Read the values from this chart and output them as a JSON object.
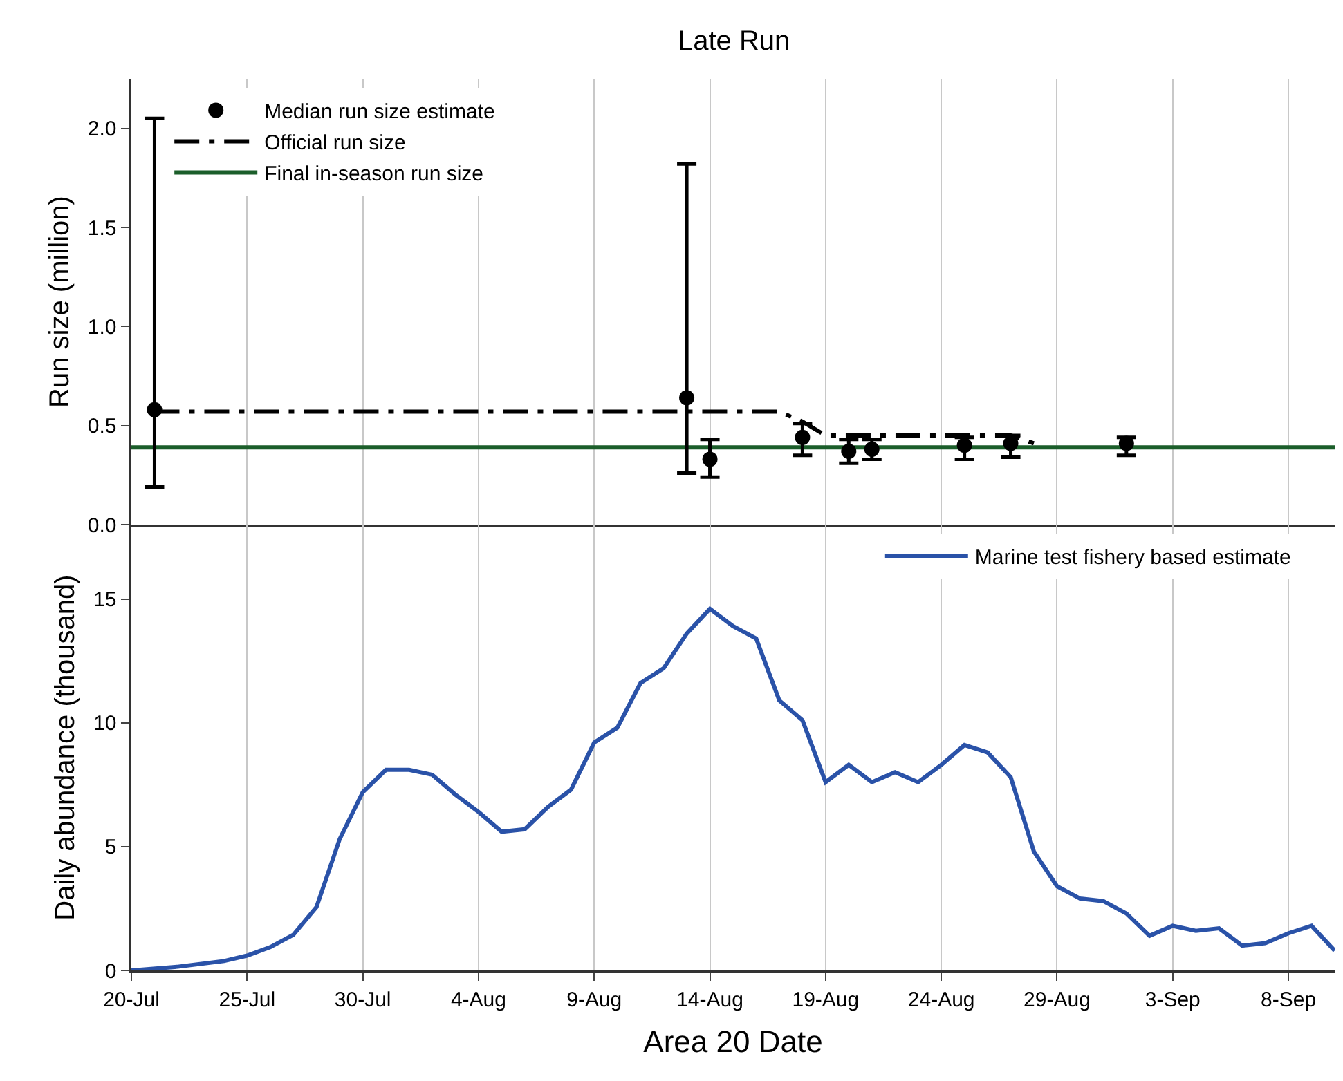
{
  "chart_data": [
    {
      "type": "scatter",
      "title": "Late Run",
      "ylabel": "Run size (million)",
      "xlim": [
        "--07-20",
        "--09-10"
      ],
      "xticks": [
        {
          "value": "--07-20",
          "label": "20-Jul"
        },
        {
          "value": "--07-25",
          "label": "25-Jul"
        },
        {
          "value": "--07-30",
          "label": "30-Jul"
        },
        {
          "value": "--08-04",
          "label": "4-Aug"
        },
        {
          "value": "--08-09",
          "label": "9-Aug"
        },
        {
          "value": "--08-14",
          "label": "14-Aug"
        },
        {
          "value": "--08-19",
          "label": "19-Aug"
        },
        {
          "value": "--08-24",
          "label": "24-Aug"
        },
        {
          "value": "--08-29",
          "label": "29-Aug"
        },
        {
          "value": "--09-03",
          "label": "3-Sep"
        },
        {
          "value": "--09-08",
          "label": "8-Sep"
        }
      ],
      "ylim": [
        0,
        2.25
      ],
      "yticks": [
        {
          "value": 0,
          "label": "0.0"
        },
        {
          "value": 0.5,
          "label": "0.5"
        },
        {
          "value": 1,
          "label": "1.0"
        },
        {
          "value": 1.5,
          "label": "1.5"
        },
        {
          "value": 2,
          "label": "2.0"
        }
      ],
      "tick_labels": "y",
      "grid": "x",
      "legend": "top left",
      "series": [
        {
          "name": "Median run size estimate",
          "type": "scatter",
          "color": "#000000",
          "marker": "circle",
          "x": [
            "--07-21",
            "--08-13",
            "--08-14",
            "--08-18",
            "--08-20",
            "--08-21",
            "--08-25",
            "--08-27",
            "--09-01"
          ],
          "values": [
            0.58,
            0.64,
            0.33,
            0.44,
            0.37,
            0.38,
            0.4,
            0.41,
            0.41
          ],
          "errors": [
            [
              0.19,
              2.05
            ],
            [
              0.26,
              1.82
            ],
            [
              0.24,
              0.43
            ],
            [
              0.35,
              0.51
            ],
            [
              0.31,
              0.43
            ],
            [
              0.33,
              0.43
            ],
            [
              0.33,
              0.44
            ],
            [
              0.34,
              0.45
            ],
            [
              0.35,
              0.44
            ]
          ]
        },
        {
          "name": "Official run size",
          "type": "line",
          "color": "#000000",
          "line_style": "dashdot",
          "x": [
            "--07-21",
            "--08-17",
            "--08-18",
            "--08-19",
            "--08-27",
            "--08-28"
          ],
          "values": [
            0.57,
            0.57,
            0.52,
            0.45,
            0.45,
            0.41
          ]
        }
      ],
      "ref_lines": [
        {
          "axis": "y",
          "value": 0.39,
          "label": "Final in-season run size",
          "color": "#1b5e2a"
        }
      ]
    },
    {
      "type": "line",
      "xlabel": "Area 20 Date",
      "ylabel": "Daily abundance (thousand)",
      "xlim": [
        "--07-20",
        "--09-10"
      ],
      "xticks": [
        {
          "value": "--07-20",
          "label": "20-Jul"
        },
        {
          "value": "--07-25",
          "label": "25-Jul"
        },
        {
          "value": "--07-30",
          "label": "30-Jul"
        },
        {
          "value": "--08-04",
          "label": "4-Aug"
        },
        {
          "value": "--08-09",
          "label": "9-Aug"
        },
        {
          "value": "--08-14",
          "label": "14-Aug"
        },
        {
          "value": "--08-19",
          "label": "19-Aug"
        },
        {
          "value": "--08-24",
          "label": "24-Aug"
        },
        {
          "value": "--08-29",
          "label": "29-Aug"
        },
        {
          "value": "--09-03",
          "label": "3-Sep"
        },
        {
          "value": "--09-08",
          "label": "8-Sep"
        }
      ],
      "ylim": [
        0,
        18
      ],
      "yticks": [
        0,
        5,
        10,
        15
      ],
      "grid": "x",
      "legend": "top right",
      "x": [
        "--07-20",
        "--07-22",
        "--07-24",
        "--07-25",
        "--07-26",
        "--07-27",
        "--07-28",
        "--07-29",
        "--07-30",
        "--07-31",
        "--08-01",
        "--08-02",
        "--08-03",
        "--08-04",
        "--08-05",
        "--08-06",
        "--08-07",
        "--08-08",
        "--08-09",
        "--08-10",
        "--08-11",
        "--08-12",
        "--08-13",
        "--08-14",
        "--08-15",
        "--08-16",
        "--08-17",
        "--08-18",
        "--08-19",
        "--08-20",
        "--08-21",
        "--08-22",
        "--08-23",
        "--08-24",
        "--08-25",
        "--08-26",
        "--08-27",
        "--08-28",
        "--08-29",
        "--08-30",
        "--08-31",
        "--09-01",
        "--09-02",
        "--09-03",
        "--09-04",
        "--09-05",
        "--09-06",
        "--09-07",
        "--09-08",
        "--09-09",
        "--09-10"
      ],
      "series": [
        {
          "name": "Marine test fishery based estimate",
          "color": "#2a52a8",
          "values": [
            0.0,
            0.15,
            0.38,
            0.6,
            0.94,
            1.44,
            2.56,
            5.3,
            7.2,
            8.1,
            8.1,
            7.9,
            7.1,
            6.4,
            5.6,
            5.7,
            6.6,
            7.3,
            9.2,
            9.8,
            11.6,
            12.2,
            13.6,
            14.6,
            13.9,
            13.4,
            10.9,
            10.1,
            7.6,
            8.3,
            7.6,
            8.0,
            7.6,
            8.3,
            9.1,
            8.8,
            7.8,
            4.8,
            3.4,
            2.9,
            2.8,
            2.3,
            1.4,
            1.8,
            1.6,
            1.7,
            1.0,
            1.1,
            1.5,
            1.8,
            0.8
          ]
        }
      ]
    }
  ]
}
